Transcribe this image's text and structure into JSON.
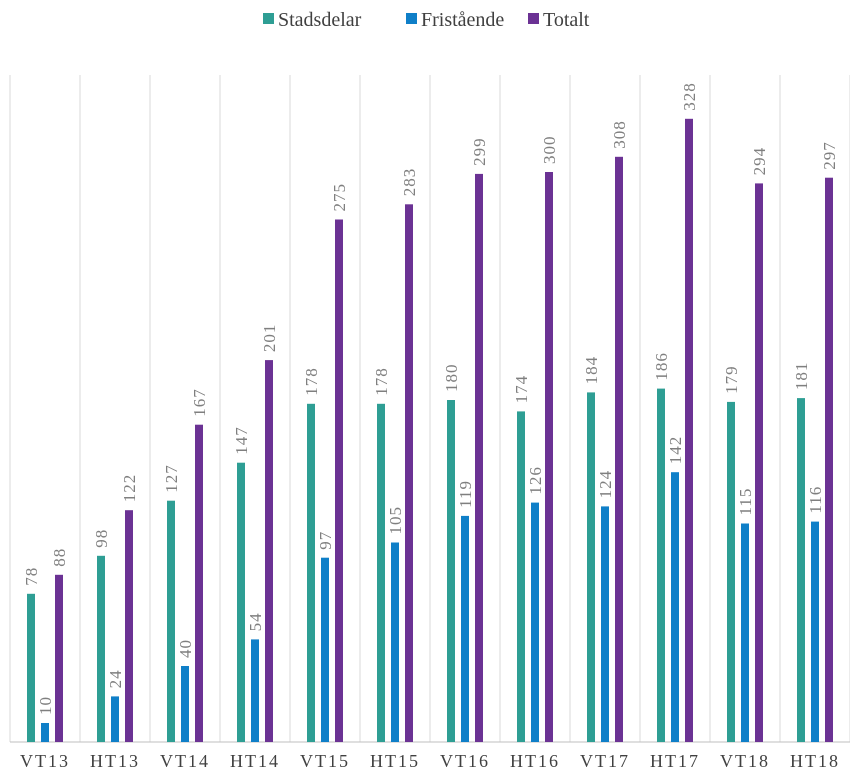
{
  "chart_data": {
    "type": "bar",
    "categories": [
      "VT13",
      "HT13",
      "VT14",
      "HT14",
      "VT15",
      "HT15",
      "VT16",
      "HT16",
      "VT17",
      "HT17",
      "VT18",
      "HT18"
    ],
    "series": [
      {
        "name": "Stadsdelar",
        "color": "#2e9e94",
        "values": [
          78,
          98,
          127,
          147,
          178,
          178,
          180,
          174,
          184,
          186,
          179,
          181
        ]
      },
      {
        "name": "Fristående",
        "color": "#0f7fc8",
        "values": [
          10,
          24,
          40,
          54,
          97,
          105,
          119,
          126,
          124,
          142,
          115,
          116
        ]
      },
      {
        "name": "Totalt",
        "color": "#6b3294",
        "values": [
          88,
          122,
          167,
          201,
          275,
          283,
          299,
          300,
          308,
          328,
          294,
          297
        ]
      }
    ],
    "legend_position": "top",
    "data_labels": true,
    "data_label_rotation": "vertical",
    "grid": "vertical-category-separators",
    "title": "",
    "xlabel": "",
    "ylabel": ""
  }
}
